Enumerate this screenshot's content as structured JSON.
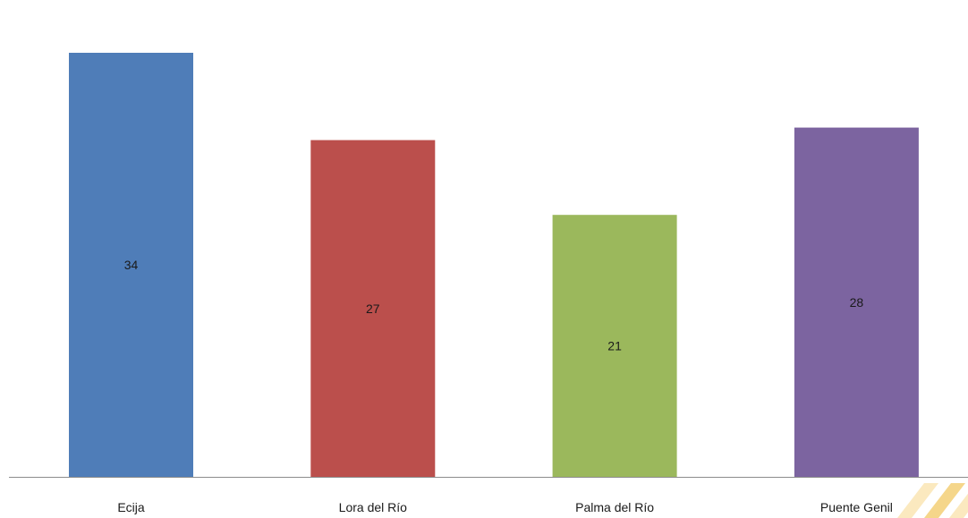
{
  "chart_data": {
    "type": "bar",
    "categories": [
      "Ecija",
      "Lora del Río",
      "Palma del Río",
      "Puente Genil"
    ],
    "values": [
      34,
      27,
      21,
      28
    ],
    "colors": [
      "#4f7db8",
      "#bb4f4c",
      "#9bb85c",
      "#7c64a0"
    ],
    "title": "",
    "xlabel": "",
    "ylabel": "",
    "ylim": [
      0,
      34
    ],
    "grid": false,
    "legend": "none",
    "data_labels": true
  },
  "watermark": {
    "colors": [
      "#f5d68a",
      "#fbe9bf"
    ]
  }
}
